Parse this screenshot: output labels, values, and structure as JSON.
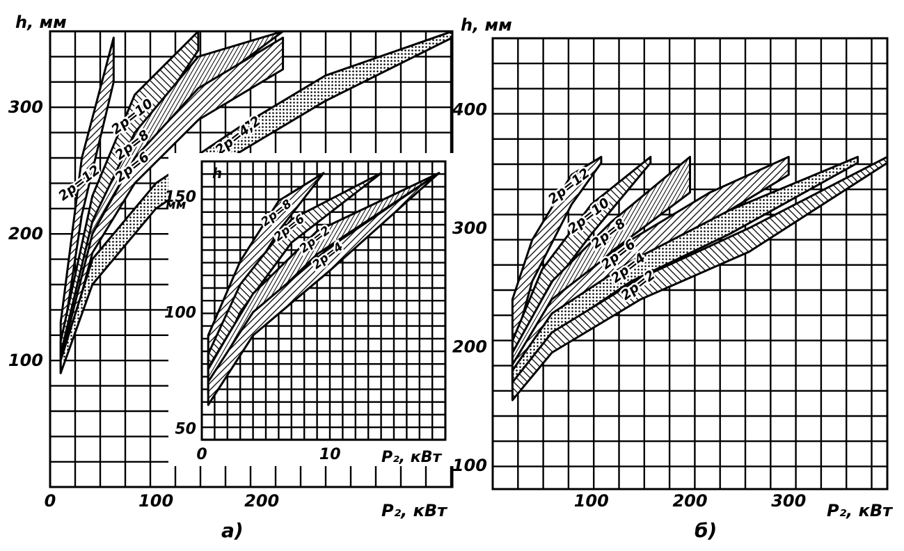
{
  "chart_data": [
    {
      "panel": "a)",
      "type": "area",
      "ylabel": "h, мм",
      "xlabel": "P₂, кВт",
      "xlim": [
        0,
        380
      ],
      "ylim": [
        0,
        360
      ],
      "x_ticks": [
        0,
        100,
        200
      ],
      "y_ticks": [
        100,
        200,
        300
      ],
      "grid": true,
      "series": [
        {
          "name": "2p=12",
          "x": [
            10,
            30,
            60
          ],
          "lower": [
            105,
            215,
            320
          ],
          "upper": [
            130,
            260,
            355
          ]
        },
        {
          "name": "2p=10",
          "x": [
            10,
            40,
            80,
            140
          ],
          "lower": [
            100,
            200,
            270,
            345
          ],
          "upper": [
            115,
            230,
            310,
            360
          ]
        },
        {
          "name": "2p=8",
          "x": [
            10,
            40,
            80,
            140,
            220
          ],
          "lower": [
            95,
            190,
            255,
            310,
            360
          ],
          "upper": [
            105,
            210,
            280,
            340,
            360
          ]
        },
        {
          "name": "2p=6",
          "x": [
            10,
            40,
            80,
            140,
            220
          ],
          "lower": [
            90,
            185,
            240,
            290,
            330
          ],
          "upper": [
            100,
            200,
            260,
            315,
            355
          ]
        },
        {
          "name": "2p=4,2",
          "x": [
            10,
            40,
            100,
            180,
            260,
            380
          ],
          "lower": [
            90,
            160,
            220,
            265,
            305,
            355
          ],
          "upper": [
            100,
            180,
            240,
            285,
            325,
            360
          ]
        }
      ]
    },
    {
      "panel": "inset",
      "type": "area",
      "ylabel": "h",
      "yunit": "мм",
      "xlabel": "P₂, кВт",
      "xlim": [
        0,
        19
      ],
      "ylim": [
        45,
        165
      ],
      "x_ticks": [
        0,
        10
      ],
      "y_ticks": [
        50,
        100,
        150
      ],
      "grid": true,
      "series": [
        {
          "name": "2p=8",
          "x": [
            0.5,
            3,
            6,
            9.5
          ],
          "lower": [
            75,
            108,
            135,
            160
          ],
          "upper": [
            90,
            122,
            148,
            160
          ]
        },
        {
          "name": "2p=6",
          "x": [
            0.5,
            3,
            7,
            14
          ],
          "lower": [
            70,
            100,
            130,
            160
          ],
          "upper": [
            82,
            112,
            140,
            160
          ]
        },
        {
          "name": "2p=2",
          "x": [
            0.5,
            4,
            9,
            18.5
          ],
          "lower": [
            65,
            98,
            125,
            160
          ],
          "upper": [
            76,
            108,
            135,
            160
          ]
        },
        {
          "name": "2p=4",
          "x": [
            0.5,
            4,
            10,
            18.5
          ],
          "lower": [
            60,
            90,
            118,
            160
          ],
          "upper": [
            70,
            100,
            128,
            160
          ]
        }
      ]
    },
    {
      "panel": "б)",
      "type": "area",
      "ylabel": "h, мм",
      "xlabel": "P₂, кВт",
      "xlim": [
        0,
        400
      ],
      "ylim": [
        80,
        460
      ],
      "x_ticks": [
        100,
        200,
        300
      ],
      "y_ticks": [
        100,
        200,
        300,
        400
      ],
      "grid": true,
      "series": [
        {
          "name": "2p=12",
          "x": [
            20,
            40,
            80,
            110
          ],
          "lower": [
            195,
            255,
            320,
            355
          ],
          "upper": [
            240,
            290,
            345,
            360
          ]
        },
        {
          "name": "2p=10",
          "x": [
            20,
            50,
            100,
            160
          ],
          "lower": [
            180,
            240,
            295,
            355
          ],
          "upper": [
            205,
            265,
            320,
            360
          ]
        },
        {
          "name": "2p=8",
          "x": [
            20,
            60,
            120,
            200
          ],
          "lower": [
            175,
            230,
            280,
            330
          ],
          "upper": [
            195,
            255,
            305,
            360
          ]
        },
        {
          "name": "2p=6",
          "x": [
            20,
            60,
            130,
            220,
            300
          ],
          "lower": [
            170,
            220,
            265,
            305,
            345
          ],
          "upper": [
            185,
            240,
            285,
            330,
            360
          ]
        },
        {
          "name": "2p=4",
          "x": [
            20,
            60,
            140,
            240,
            370
          ],
          "lower": [
            165,
            210,
            255,
            295,
            355
          ],
          "upper": [
            180,
            228,
            272,
            315,
            360
          ]
        },
        {
          "name": "2p=2",
          "x": [
            20,
            60,
            150,
            260,
            400
          ],
          "lower": [
            155,
            195,
            240,
            280,
            355
          ],
          "upper": [
            170,
            212,
            258,
            300,
            360
          ]
        }
      ]
    }
  ],
  "labels": {
    "a_ylabel": "h, мм",
    "a_xlabel": "P₂, кВт",
    "a_caption": "а)",
    "inset_ylabel": "h",
    "inset_yunit": "мм",
    "inset_xlabel": "P₂, кВт",
    "b_ylabel": "h, мм",
    "b_xlabel": "P₂, кВт",
    "b_caption": "б)"
  }
}
